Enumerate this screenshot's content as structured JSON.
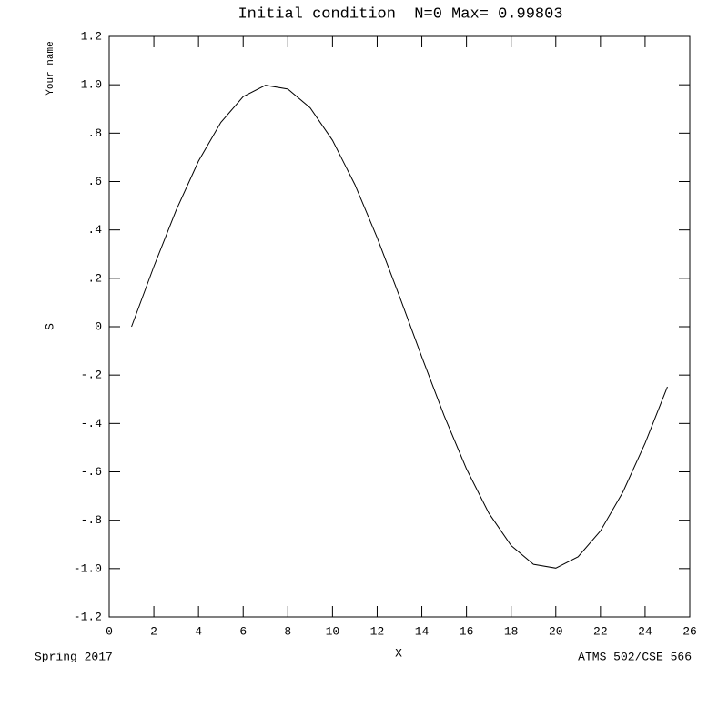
{
  "chart_data": {
    "type": "line",
    "title": "Initial condition  N=0 Max= 0.99803",
    "x_label": "X",
    "y_label": "S",
    "y_label_top": "Your name",
    "footer_left": "Spring 2017",
    "footer_right": "ATMS 502/CSE 566",
    "x": [
      1,
      2,
      3,
      4,
      5,
      6,
      7,
      8,
      9,
      10,
      11,
      12,
      13,
      14,
      15,
      16,
      17,
      18,
      19,
      20,
      21,
      22,
      23,
      24,
      25
    ],
    "series": [
      {
        "color": "#000000",
        "values": [
          0,
          0.2487,
          0.4818,
          0.6845,
          0.8443,
          0.9511,
          0.998,
          0.9823,
          0.9048,
          0.7705,
          0.5878,
          0.3681,
          0.1253,
          -0.1253,
          -0.3681,
          -0.5878,
          -0.7705,
          -0.9048,
          -0.9823,
          -0.998,
          -0.9511,
          -0.8443,
          -0.6845,
          -0.4818,
          -0.2487
        ]
      }
    ],
    "xlim": [
      0,
      26
    ],
    "xticks": [
      0,
      2,
      4,
      6,
      8,
      10,
      12,
      14,
      16,
      18,
      20,
      22,
      24,
      26
    ],
    "ylim": [
      -1.2,
      1.2
    ],
    "yticks": [
      -1.2,
      {
        "value": -1.0,
        "label": "-1.0"
      },
      {
        "value": -0.8,
        "label": "-.8"
      },
      {
        "value": -0.6,
        "label": "-.6"
      },
      {
        "value": -0.4,
        "label": "-.4"
      },
      {
        "value": -0.2,
        "label": "-.2"
      },
      0,
      {
        "value": 0.2,
        "label": ".2"
      },
      {
        "value": 0.4,
        "label": ".4"
      },
      {
        "value": 0.6,
        "label": ".6"
      },
      {
        "value": 0.8,
        "label": ".8"
      },
      {
        "value": 1.0,
        "label": "1.0"
      },
      1.2
    ],
    "grid": false
  }
}
